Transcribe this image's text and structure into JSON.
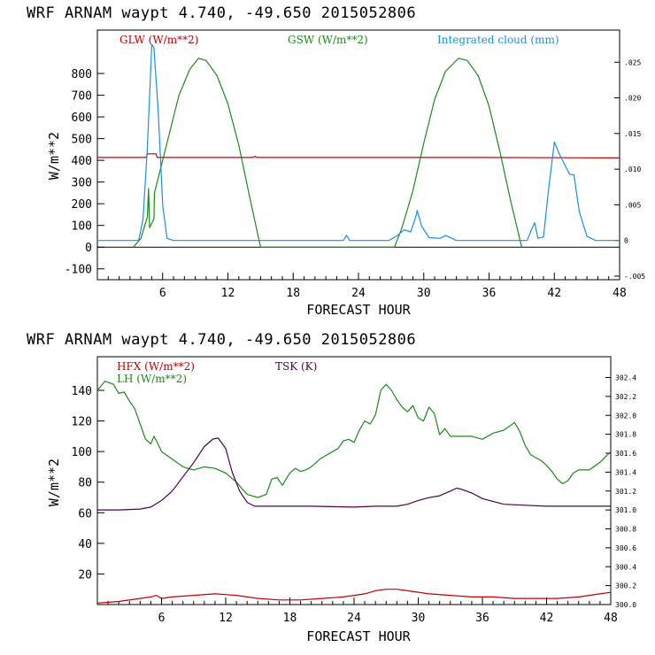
{
  "chart_data": [
    {
      "type": "line",
      "title": "WRF   ARNAM waypt     4.740, -49.650  2015052806",
      "xlabel": "FORECAST HOUR",
      "ylabel": "W/m**2",
      "xlim": [
        0,
        48
      ],
      "ylim": [
        -150,
        1000
      ],
      "xticks": [
        "6",
        "12",
        "18",
        "24",
        "30",
        "36",
        "42",
        "48"
      ],
      "yticks": [
        "800",
        "700",
        "600",
        "500",
        "400",
        "300",
        "200",
        "100",
        "0",
        "-100"
      ],
      "right_axis": {
        "label_series": "Integrated cloud (mm)",
        "range": [
          -0.0055,
          0.0295
        ],
        "ticks": [
          ".025",
          ".020",
          ".015",
          ".010",
          ".005",
          "0",
          "-.005"
        ]
      },
      "series": [
        {
          "name": "GLW (W/m**2)",
          "color": "#c00000",
          "axis": "left",
          "points": [
            [
              0,
              413
            ],
            [
              4.5,
              413
            ],
            [
              4.6,
              430
            ],
            [
              5.4,
              430
            ],
            [
              5.5,
              413
            ],
            [
              14.3,
              413
            ],
            [
              14.5,
              418
            ],
            [
              14.7,
              413
            ],
            [
              35,
              413
            ],
            [
              48,
              411
            ]
          ]
        },
        {
          "name": "GSW (W/m**2)",
          "color": "#1a8a1a",
          "axis": "left",
          "points": [
            [
              3.3,
              0
            ],
            [
              4,
              40
            ],
            [
              4.6,
              140
            ],
            [
              4.7,
              270
            ],
            [
              4.8,
              90
            ],
            [
              5.2,
              130
            ],
            [
              5.25,
              250
            ],
            [
              5.8,
              360
            ],
            [
              6.5,
              500
            ],
            [
              7.5,
              700
            ],
            [
              8.5,
              820
            ],
            [
              9.3,
              870
            ],
            [
              10,
              860
            ],
            [
              11,
              790
            ],
            [
              12,
              660
            ],
            [
              13,
              470
            ],
            [
              14,
              230
            ],
            [
              15,
              0
            ],
            [
              27.3,
              0
            ],
            [
              28,
              90
            ],
            [
              29,
              260
            ],
            [
              30,
              480
            ],
            [
              31,
              680
            ],
            [
              32,
              810
            ],
            [
              33.2,
              870
            ],
            [
              34,
              860
            ],
            [
              35,
              790
            ],
            [
              36,
              650
            ],
            [
              37,
              440
            ],
            [
              38,
              210
            ],
            [
              39,
              0
            ]
          ]
        },
        {
          "name": "Integrated cloud (mm)",
          "color": "#1a8fe0",
          "axis": "right",
          "points": [
            [
              0,
              0
            ],
            [
              3.8,
              0
            ],
            [
              4.2,
              0.003
            ],
            [
              4.6,
              0.013
            ],
            [
              5,
              0.0275
            ],
            [
              5.2,
              0.027
            ],
            [
              5.6,
              0.018
            ],
            [
              6,
              0.005
            ],
            [
              6.4,
              0.0003
            ],
            [
              7,
              0
            ],
            [
              22.6,
              0
            ],
            [
              22.9,
              0.0007
            ],
            [
              23.2,
              0
            ],
            [
              26.8,
              0
            ],
            [
              27.5,
              0.0006
            ],
            [
              28.2,
              0.0015
            ],
            [
              28.8,
              0.0012
            ],
            [
              29.2,
              0.003
            ],
            [
              29.4,
              0.0042
            ],
            [
              29.8,
              0.002
            ],
            [
              30.5,
              0.0004
            ],
            [
              31.5,
              0.0003
            ],
            [
              32,
              0.0007
            ],
            [
              32.6,
              0.0003
            ],
            [
              33,
              0
            ],
            [
              39.5,
              0
            ],
            [
              39.9,
              0.0015
            ],
            [
              40.2,
              0.0025
            ],
            [
              40.5,
              0.0003
            ],
            [
              41,
              0.0005
            ],
            [
              41.5,
              0.0075
            ],
            [
              42,
              0.0138
            ],
            [
              42.5,
              0.012
            ],
            [
              43,
              0.0105
            ],
            [
              43.4,
              0.0093
            ],
            [
              43.8,
              0.0092
            ],
            [
              44.3,
              0.004
            ],
            [
              45,
              0.0006
            ],
            [
              45.8,
              0
            ],
            [
              48,
              0
            ]
          ]
        }
      ]
    },
    {
      "type": "line",
      "title": "WRF   ARNAM waypt     4.740, -49.650  2015052806",
      "xlabel": "FORECAST HOUR",
      "ylabel": "W/m**2",
      "xlim": [
        0,
        48
      ],
      "ylim": [
        0,
        162
      ],
      "xticks": [
        "6",
        "12",
        "18",
        "24",
        "30",
        "36",
        "42",
        "48"
      ],
      "yticks": [
        "140",
        "120",
        "100",
        "80",
        "60",
        "40",
        "20"
      ],
      "right_axis": {
        "label_series": "TSK (K)",
        "range": [
          300.0,
          302.62
        ],
        "ticks": [
          "302.4",
          "302.2",
          "302.0",
          "301.8",
          "301.6",
          "301.4",
          "301.2",
          "301.0",
          "300.8",
          "300.6",
          "300.4",
          "300.2",
          "300.0"
        ]
      },
      "series": [
        {
          "name": "HFX (W/m**2)",
          "color": "#c00000",
          "axis": "left",
          "points": [
            [
              0,
              1
            ],
            [
              2,
              2
            ],
            [
              4,
              4
            ],
            [
              5,
              5
            ],
            [
              5.5,
              6
            ],
            [
              6,
              4
            ],
            [
              7,
              5
            ],
            [
              9,
              6
            ],
            [
              11,
              7
            ],
            [
              13,
              6
            ],
            [
              15,
              4
            ],
            [
              17,
              3
            ],
            [
              19,
              3
            ],
            [
              21,
              4
            ],
            [
              23,
              5
            ],
            [
              25,
              7
            ],
            [
              26,
              9
            ],
            [
              27,
              10
            ],
            [
              28,
              10
            ],
            [
              29,
              9
            ],
            [
              31,
              7
            ],
            [
              33,
              6
            ],
            [
              35,
              5
            ],
            [
              37,
              5
            ],
            [
              39,
              4
            ],
            [
              41,
              4
            ],
            [
              43,
              4
            ],
            [
              45,
              5
            ],
            [
              47,
              7
            ],
            [
              48,
              8
            ]
          ]
        },
        {
          "name": "LH  (W/m**2)",
          "color": "#1a8a1a",
          "axis": "left",
          "points": [
            [
              0,
              140
            ],
            [
              0.7,
              146
            ],
            [
              1.5,
              144
            ],
            [
              2,
              138
            ],
            [
              2.5,
              139
            ],
            [
              3,
              133
            ],
            [
              3.5,
              128
            ],
            [
              4,
              118
            ],
            [
              4.5,
              108
            ],
            [
              5,
              105
            ],
            [
              5.3,
              110
            ],
            [
              5.6,
              106
            ],
            [
              6,
              100
            ],
            [
              7,
              95
            ],
            [
              8,
              90
            ],
            [
              9,
              88
            ],
            [
              10,
              90
            ],
            [
              11,
              89
            ],
            [
              12,
              86
            ],
            [
              13,
              80
            ],
            [
              14,
              72
            ],
            [
              15,
              70
            ],
            [
              15.8,
              72
            ],
            [
              16.3,
              82
            ],
            [
              16.8,
              83
            ],
            [
              17.3,
              78
            ],
            [
              18,
              86
            ],
            [
              18.5,
              89
            ],
            [
              19,
              87
            ],
            [
              19.5,
              88
            ],
            [
              20,
              90
            ],
            [
              20.8,
              95
            ],
            [
              21.5,
              98
            ],
            [
              22,
              100
            ],
            [
              22.5,
              102
            ],
            [
              23,
              107
            ],
            [
              23.5,
              108
            ],
            [
              24,
              106
            ],
            [
              24.5,
              114
            ],
            [
              25,
              120
            ],
            [
              25.5,
              118
            ],
            [
              26,
              124
            ],
            [
              26.5,
              140
            ],
            [
              27,
              144
            ],
            [
              27.5,
              140
            ],
            [
              28,
              134
            ],
            [
              28.5,
              129
            ],
            [
              29,
              126
            ],
            [
              29.5,
              130
            ],
            [
              30,
              122
            ],
            [
              30.5,
              120
            ],
            [
              31,
              129
            ],
            [
              31.5,
              125
            ],
            [
              32,
              111
            ],
            [
              32.5,
              115
            ],
            [
              33,
              110
            ],
            [
              34,
              110
            ],
            [
              35,
              110
            ],
            [
              36,
              108
            ],
            [
              37,
              112
            ],
            [
              38,
              114
            ],
            [
              39,
              119
            ],
            [
              39.5,
              113
            ],
            [
              40,
              104
            ],
            [
              40.5,
              98
            ],
            [
              41,
              96
            ],
            [
              41.5,
              94
            ],
            [
              42,
              91
            ],
            [
              42.5,
              87
            ],
            [
              43,
              82
            ],
            [
              43.5,
              79
            ],
            [
              44,
              81
            ],
            [
              44.5,
              86
            ],
            [
              45,
              88
            ],
            [
              46,
              88
            ],
            [
              47,
              93
            ],
            [
              48,
              100
            ]
          ]
        },
        {
          "name": "TSK (K)",
          "color": "#4b0050",
          "axis": "right",
          "points": [
            [
              0,
              301.0
            ],
            [
              2,
              301.0
            ],
            [
              4,
              301.01
            ],
            [
              5,
              301.03
            ],
            [
              6,
              301.1
            ],
            [
              7,
              301.2
            ],
            [
              8,
              301.35
            ],
            [
              9,
              301.5
            ],
            [
              10,
              301.67
            ],
            [
              10.8,
              301.75
            ],
            [
              11.3,
              301.76
            ],
            [
              12,
              301.65
            ],
            [
              12.6,
              301.4
            ],
            [
              13.3,
              301.2
            ],
            [
              14,
              301.08
            ],
            [
              14.7,
              301.04
            ],
            [
              16,
              301.04
            ],
            [
              18,
              301.04
            ],
            [
              20,
              301.04
            ],
            [
              24,
              301.03
            ],
            [
              26,
              301.04
            ],
            [
              28,
              301.04
            ],
            [
              29,
              301.06
            ],
            [
              30,
              301.1
            ],
            [
              31,
              301.13
            ],
            [
              32,
              301.15
            ],
            [
              33,
              301.2
            ],
            [
              33.6,
              301.23
            ],
            [
              34,
              301.22
            ],
            [
              35,
              301.18
            ],
            [
              36,
              301.12
            ],
            [
              38,
              301.06
            ],
            [
              40,
              301.05
            ],
            [
              42,
              301.04
            ],
            [
              44,
              301.04
            ],
            [
              46,
              301.04
            ],
            [
              48,
              301.04
            ]
          ]
        }
      ]
    }
  ]
}
